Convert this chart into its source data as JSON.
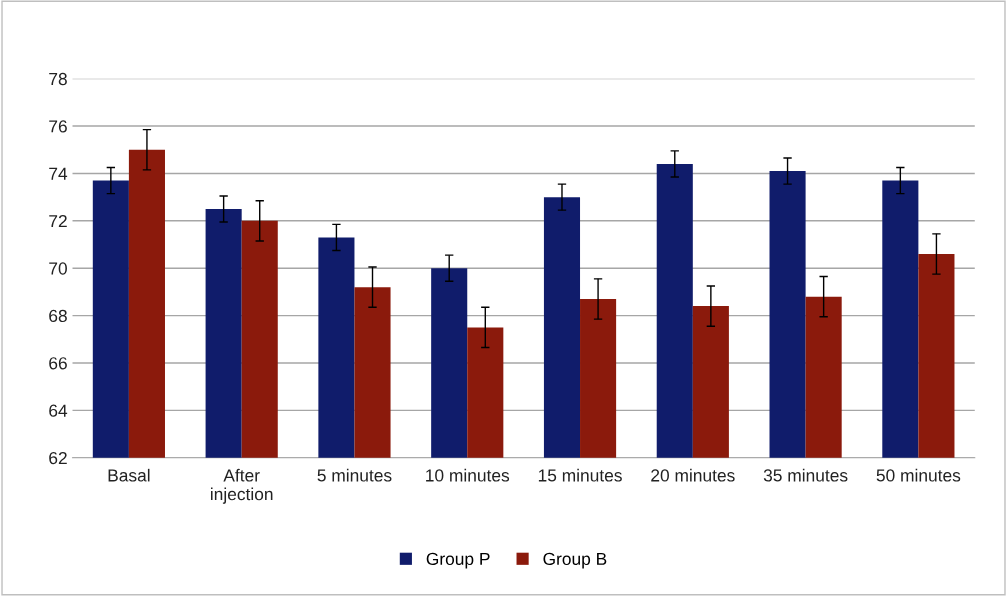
{
  "chart_data": {
    "type": "bar",
    "categories": [
      "Basal",
      "After\ninjection",
      "5 minutes",
      "10 minutes",
      "15 minutes",
      "20 minutes",
      "35 minutes",
      "50 minutes"
    ],
    "series": [
      {
        "name": "Group P",
        "color": "#101c6b",
        "values": [
          73.7,
          72.5,
          71.3,
          70.0,
          73.0,
          74.4,
          74.1,
          73.7
        ],
        "errors": [
          0.55,
          0.55,
          0.55,
          0.55,
          0.55,
          0.55,
          0.55,
          0.55
        ]
      },
      {
        "name": "Group B",
        "color": "#8b1a0c",
        "values": [
          75.0,
          72.0,
          69.2,
          67.5,
          68.7,
          68.4,
          68.8,
          70.6
        ],
        "errors": [
          0.85,
          0.85,
          0.85,
          0.85,
          0.85,
          0.85,
          0.85,
          0.85
        ]
      }
    ],
    "ylim": [
      62,
      78
    ],
    "yticks": [
      62,
      64,
      66,
      68,
      70,
      72,
      74,
      76,
      78
    ],
    "grid": "y",
    "legend": "bottom"
  }
}
